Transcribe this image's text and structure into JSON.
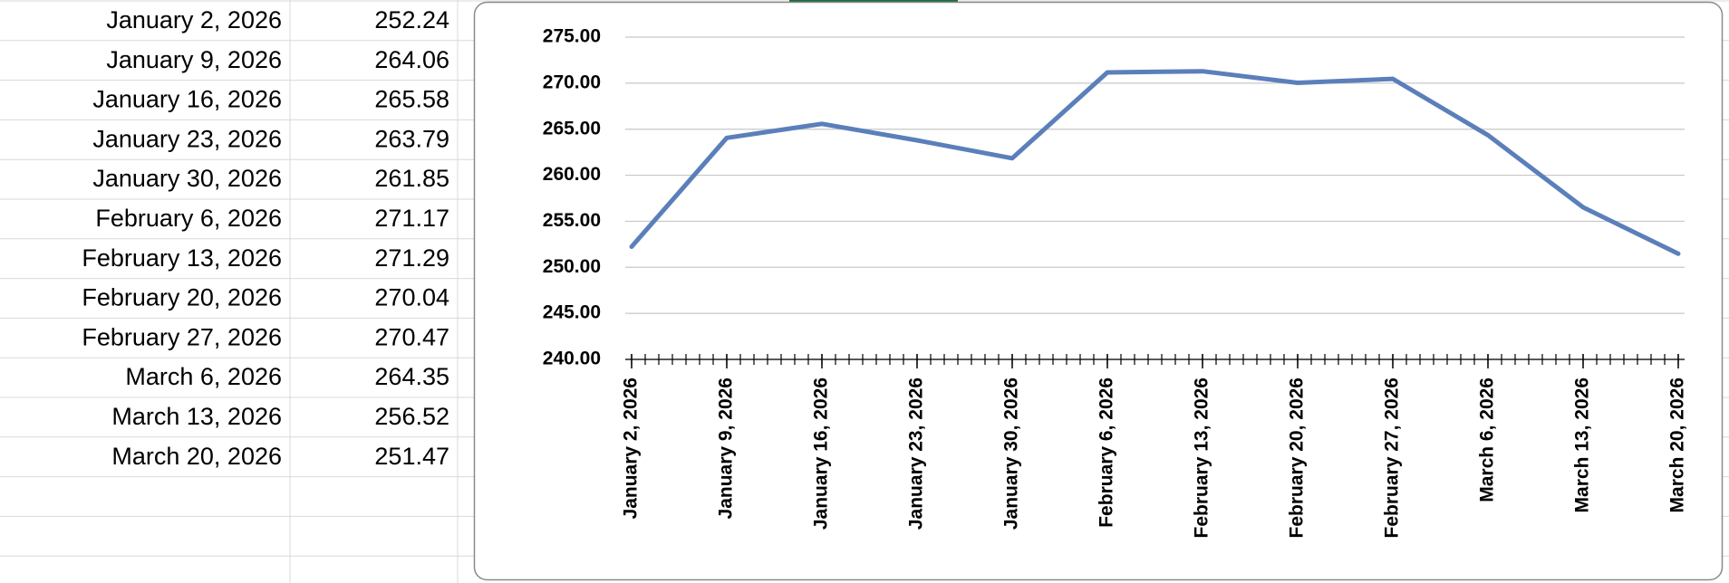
{
  "table": {
    "rows": [
      [
        "January 2, 2026",
        252.24
      ],
      [
        "January 9, 2026",
        264.06
      ],
      [
        "January 16, 2026",
        265.58
      ],
      [
        "January 23, 2026",
        263.79
      ],
      [
        "January 30, 2026",
        261.85
      ],
      [
        "February 6, 2026",
        271.17
      ],
      [
        "February 13, 2026",
        271.29
      ],
      [
        "February 20, 2026",
        270.04
      ],
      [
        "February 27, 2026",
        270.47
      ],
      [
        "March 6, 2026",
        264.35
      ],
      [
        "March 13, 2026",
        256.52
      ],
      [
        "March 20, 2026",
        251.47
      ]
    ]
  },
  "chart_data": {
    "type": "line",
    "categories": [
      "January 2, 2026",
      "January 9, 2026",
      "January 16, 2026",
      "January 23, 2026",
      "January 30, 2026",
      "February 6, 2026",
      "February 13, 2026",
      "February 20, 2026",
      "February 27, 2026",
      "March 6, 2026",
      "March 13, 2026",
      "March 20, 2026"
    ],
    "values": [
      252.24,
      264.06,
      265.58,
      263.79,
      261.85,
      271.17,
      271.29,
      270.04,
      270.47,
      264.35,
      256.52,
      251.47
    ],
    "color": "#5b7fba",
    "ylim": [
      240,
      275
    ],
    "yticks": [
      {
        "value": 240,
        "label": "240.00"
      },
      {
        "value": 245,
        "label": "245.00"
      },
      {
        "value": 250,
        "label": "250.00"
      },
      {
        "value": 255,
        "label": "255.00"
      },
      {
        "value": 260,
        "label": "260.00"
      },
      {
        "value": 265,
        "label": "265.00"
      },
      {
        "value": 270,
        "label": "270.00"
      },
      {
        "value": 275,
        "label": "275.00"
      }
    ],
    "grid": true
  }
}
